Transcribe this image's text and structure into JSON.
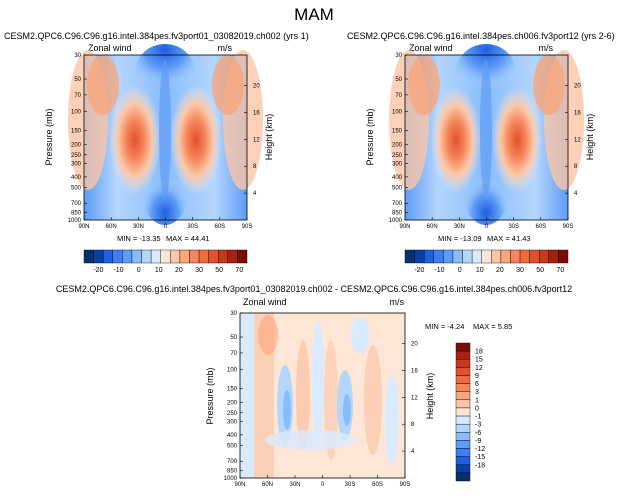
{
  "figure": {
    "season": "MAM"
  },
  "colors": {
    "blue_scale": [
      "#08306b",
      "#0a3fa8",
      "#1f5fe0",
      "#3d7ef0",
      "#5f9cf7",
      "#88bdfb",
      "#b4d6fd",
      "#d9eafe"
    ],
    "red_scale": [
      "#fde6d6",
      "#fbc6a6",
      "#f8a67c",
      "#f5855a",
      "#ef6a3f",
      "#e4502b",
      "#c9391b",
      "#a6220f",
      "#7a0d06"
    ],
    "frame": "#000000"
  },
  "panels": [
    {
      "id": "p1",
      "title": "CESM2.QPC6.C96.C96.g16.intel.384pes.fv3port01_03082019.ch002 (yrs 1)",
      "variable": "Zonal wind",
      "units": "m/s",
      "min_label": "MIN = -13.35",
      "max_label": "MAX = 44.41"
    },
    {
      "id": "p2",
      "title": "CESM2.QPC6.C96.C96.g16.intel.384pes.ch006.fv3port12 (yrs 2-6)",
      "variable": "Zonal wind",
      "units": "m/s",
      "min_label": "MIN = -13.09",
      "max_label": "MAX = 41.43"
    },
    {
      "id": "p3",
      "title": "CESM2.QPC6.C96.C96.g16.intel.384pes.fv3port01_03082019.ch002 - CESM2.QPC6.C96.C96.g16.intel.384pes.ch006.fv3port12",
      "variable": "Zonal wind",
      "units": "m/s",
      "min_label": "MIN = -4.24",
      "max_label": "MAX = 5.85"
    }
  ],
  "chart_data": [
    {
      "type": "heatmap",
      "title": "CESM2.QPC6.C96.C96.g16.intel.384pes.fv3port01_03082019.ch002 (yrs 1)",
      "xlabel": "",
      "ylabel": "Pressure (mb)",
      "y2label": "Height (km)",
      "x_ticks": [
        "90N",
        "60N",
        "30N",
        "0",
        "30S",
        "60S",
        "90S"
      ],
      "y_ticks": [
        "30",
        "50",
        "70",
        "100",
        "150",
        "200",
        "250",
        "300",
        "400",
        "500",
        "700",
        "850",
        "1000"
      ],
      "y2_ticks": [
        "20",
        "16",
        "12",
        "8",
        "4"
      ],
      "zlim": [
        -13.35,
        44.41
      ],
      "colorbar_levels": [
        "-20",
        "-10",
        "0",
        "10",
        "20",
        "30",
        "50",
        "70"
      ],
      "jets": [
        {
          "lat": -30,
          "pressure": 200,
          "max": 44
        },
        {
          "lat": 30,
          "pressure": 200,
          "max": 44
        }
      ],
      "easterlies": [
        {
          "lat": 0,
          "pressure": 30,
          "min": -13
        },
        {
          "lat": 0,
          "pressure": 700,
          "min": -8
        }
      ]
    },
    {
      "type": "heatmap",
      "title": "CESM2.QPC6.C96.C96.g16.intel.384pes.ch006.fv3port12 (yrs 2-6)",
      "xlabel": "",
      "ylabel": "Pressure (mb)",
      "y2label": "Height (km)",
      "x_ticks": [
        "90N",
        "60N",
        "30N",
        "0",
        "30S",
        "60S",
        "90S"
      ],
      "y_ticks": [
        "30",
        "50",
        "70",
        "100",
        "150",
        "200",
        "250",
        "300",
        "400",
        "500",
        "700",
        "850",
        "1000"
      ],
      "y2_ticks": [
        "20",
        "16",
        "12",
        "8",
        "4"
      ],
      "zlim": [
        -13.09,
        41.43
      ],
      "colorbar_levels": [
        "-20",
        "-10",
        "0",
        "10",
        "20",
        "30",
        "50",
        "70"
      ],
      "jets": [
        {
          "lat": -30,
          "pressure": 200,
          "max": 41
        },
        {
          "lat": 30,
          "pressure": 200,
          "max": 41
        }
      ],
      "easterlies": [
        {
          "lat": 0,
          "pressure": 30,
          "min": -13
        },
        {
          "lat": 0,
          "pressure": 700,
          "min": -8
        }
      ]
    },
    {
      "type": "heatmap",
      "title": "CESM2.QPC6.C96.C96.g16.intel.384pes.fv3port01_03082019.ch002 - CESM2.QPC6.C96.C96.g16.intel.384pes.ch006.fv3port12",
      "xlabel": "",
      "ylabel": "Pressure (mb)",
      "y2label": "Height (km)",
      "x_ticks": [
        "90N",
        "60N",
        "30N",
        "0",
        "30S",
        "60S",
        "90S"
      ],
      "y_ticks": [
        "30",
        "50",
        "70",
        "100",
        "150",
        "200",
        "250",
        "300",
        "400",
        "500",
        "700",
        "850",
        "1000"
      ],
      "y2_ticks": [
        "20",
        "16",
        "12",
        "8",
        "4"
      ],
      "zlim": [
        -4.24,
        5.85
      ],
      "colorbar_levels": [
        "18",
        "15",
        "12",
        "9",
        "6",
        "3",
        "1",
        "0",
        "-1",
        "-3",
        "-6",
        "-9",
        "-12",
        "-15",
        "-18"
      ]
    }
  ]
}
